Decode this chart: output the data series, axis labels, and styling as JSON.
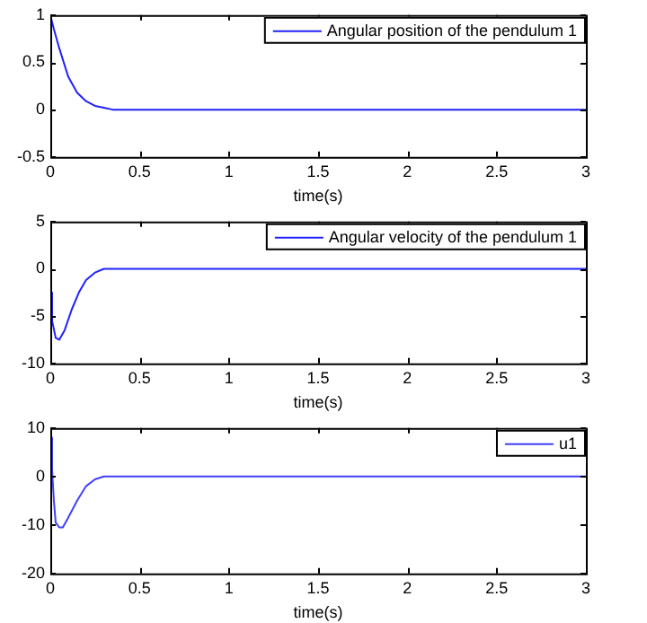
{
  "chart_data": [
    {
      "type": "line",
      "xlabel": "time(s)",
      "xlim": [
        0,
        3
      ],
      "xticks": [
        0,
        0.5,
        1,
        1.5,
        2,
        2.5,
        3
      ],
      "ylim": [
        -0.5,
        1
      ],
      "yticks": [
        -0.5,
        0,
        0.5,
        1
      ],
      "grid": false,
      "legend": "top right",
      "marker": "none",
      "line_style": "solid",
      "series": [
        {
          "name": "Angular position of the pendulum 1",
          "color": "#2020ff",
          "x": [
            0,
            0.02,
            0.05,
            0.1,
            0.15,
            0.2,
            0.25,
            0.3,
            0.35,
            3
          ],
          "values": [
            1,
            0.85,
            0.65,
            0.35,
            0.18,
            0.09,
            0.04,
            0.02,
            0,
            0
          ]
        }
      ]
    },
    {
      "type": "line",
      "xlabel": "time(s)",
      "xlim": [
        0,
        3
      ],
      "xticks": [
        0,
        0.5,
        1,
        1.5,
        2,
        2.5,
        3
      ],
      "ylim": [
        -10,
        5
      ],
      "yticks": [
        -10,
        -5,
        0,
        5
      ],
      "grid": false,
      "legend": "top right",
      "marker": "none",
      "line_style": "solid",
      "series": [
        {
          "name": "Angular velocity of the pendulum 1",
          "color": "#2020ff",
          "x": [
            0,
            0.01,
            0.03,
            0.05,
            0.08,
            0.12,
            0.16,
            0.2,
            0.25,
            0.3,
            3
          ],
          "values": [
            -2.5,
            -5.5,
            -7.3,
            -7.5,
            -6.5,
            -4.3,
            -2.5,
            -1.2,
            -0.4,
            0,
            0
          ]
        }
      ]
    },
    {
      "type": "line",
      "xlabel": "time(s)",
      "xlim": [
        0,
        3
      ],
      "xticks": [
        0,
        0.5,
        1,
        1.5,
        2,
        2.5,
        3
      ],
      "ylim": [
        -20,
        10
      ],
      "yticks": [
        -20,
        -10,
        0,
        10
      ],
      "grid": false,
      "legend": "top right",
      "marker": "none",
      "line_style": "solid",
      "series": [
        {
          "name": "u1",
          "color": "#4040ff",
          "x": [
            0,
            0.01,
            0.02,
            0.03,
            0.05,
            0.07,
            0.1,
            0.15,
            0.2,
            0.25,
            0.3,
            3
          ],
          "values": [
            8,
            1.5,
            -5,
            -9.5,
            -10.5,
            -10.5,
            -8.5,
            -5,
            -2,
            -0.6,
            0,
            0
          ]
        }
      ]
    }
  ]
}
